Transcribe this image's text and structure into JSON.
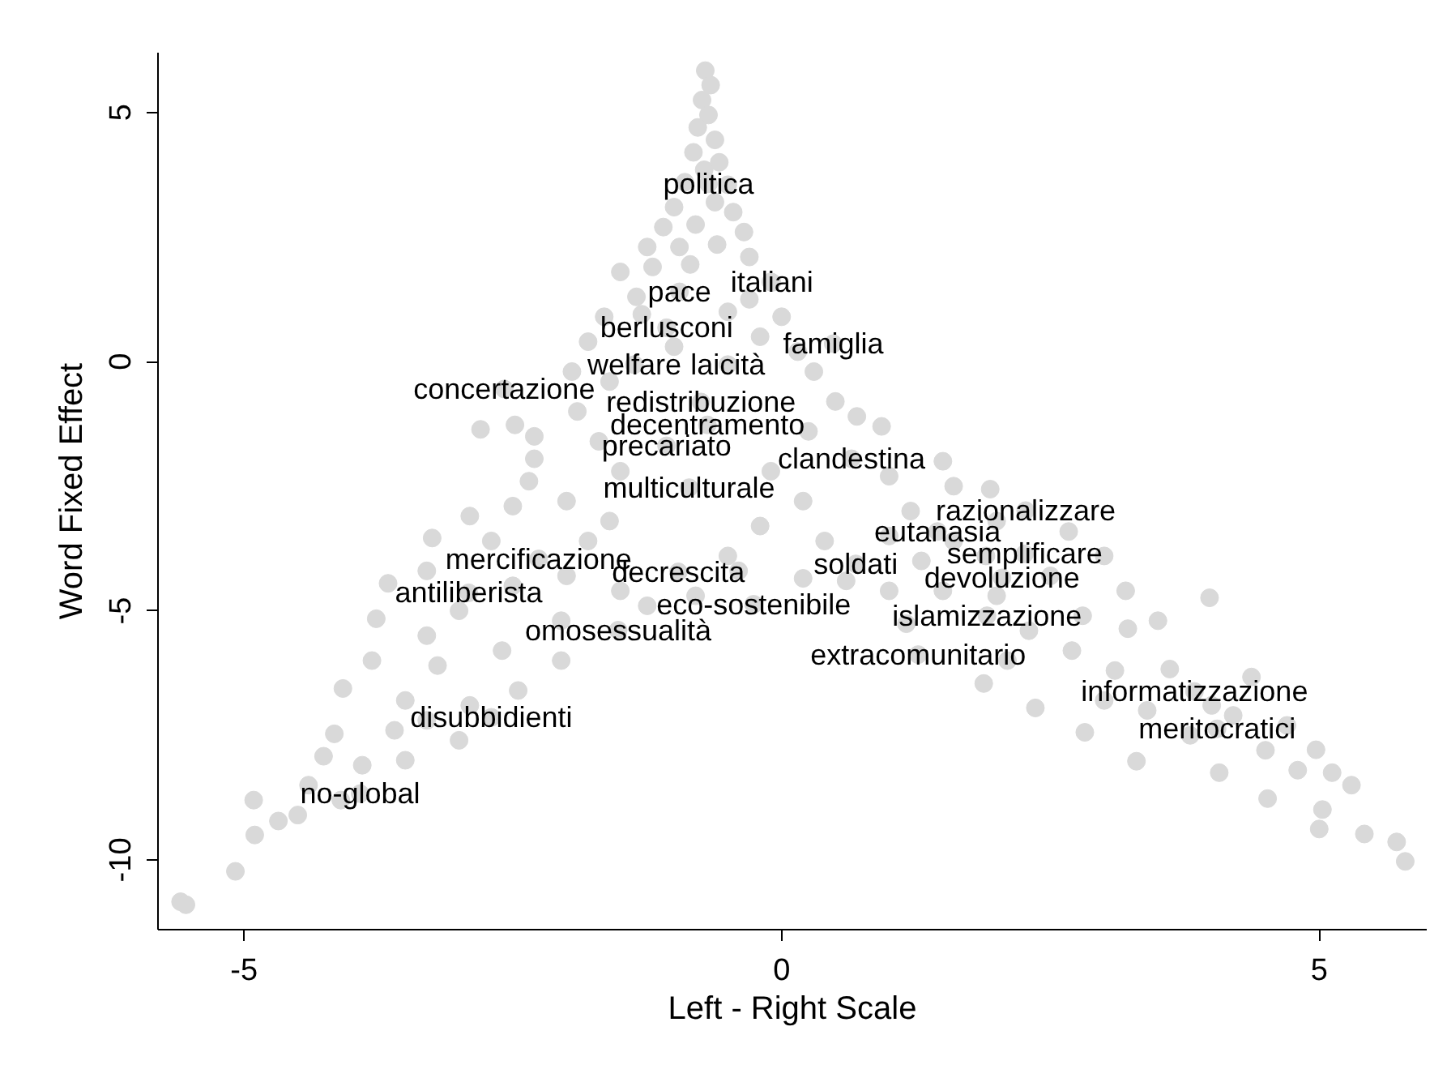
{
  "chart_data": {
    "type": "scatter",
    "xlabel": "Left - Right Scale",
    "ylabel": "Word Fixed Effect",
    "xlim": [
      -5.8,
      6.0
    ],
    "ylim": [
      -11.4,
      6.2
    ],
    "xticks": [
      -5,
      0,
      5
    ],
    "yticks": [
      -10,
      -5,
      0,
      5
    ],
    "grid": false,
    "marker": "circle",
    "x": [
      -0.71,
      -0.66,
      -0.74,
      -0.68,
      -0.78,
      -0.62,
      -0.82,
      -0.58,
      -0.72,
      -0.9,
      -0.5,
      -0.62,
      -1.0,
      -0.45,
      -1.1,
      -0.8,
      -0.35,
      -1.25,
      -0.95,
      -0.6,
      -0.3,
      -1.5,
      -1.2,
      -0.85,
      -0.1,
      -1.35,
      -0.3,
      -1.65,
      -1.3,
      -0.5,
      0.0,
      -1.8,
      -0.2,
      0.15,
      -1.95,
      -1.0,
      0.3,
      -1.6,
      0.5,
      -1.9,
      0.7,
      -2.3,
      0.25,
      -1.7,
      0.93,
      -2.8,
      -2.48,
      -2.3,
      -2.35,
      1.0,
      1.5,
      1.6,
      1.94,
      -0.1,
      -1.5,
      0.2,
      -2.9,
      -2.5,
      -2.0,
      -1.6,
      -0.2,
      0.4,
      1.2,
      2.0,
      2.67,
      -3.25,
      -2.7,
      -1.8,
      -0.5,
      1.0,
      1.6,
      3.0,
      2.5,
      -3.66,
      -3.3,
      -2.5,
      -2.0,
      -1.5,
      -0.4,
      0.2,
      1.0,
      1.5,
      2.0,
      3.2,
      3.98,
      3.5,
      2.8,
      1.16,
      -1.25,
      -2.05,
      -3.0,
      -3.77,
      -3.3,
      -2.6,
      -2.05,
      -3.81,
      -3.2,
      -2.45,
      -4.08,
      -3.5,
      -2.9,
      -4.16,
      -3.6,
      -3.0,
      -3.3,
      -4.26,
      -3.9,
      -3.5,
      -4.4,
      -4.1,
      -4.91,
      -4.68,
      -4.5,
      -4.9,
      -5.08,
      -5.59,
      -5.54,
      1.9,
      2.3,
      2.1,
      1.88,
      2.7,
      2.36,
      3.1,
      2.82,
      3.0,
      3.4,
      3.3,
      3.61,
      3.22,
      3.8,
      4.07,
      4.37,
      4.2,
      4.5,
      4.52,
      4.8,
      4.97,
      5.12,
      5.3,
      5.03,
      5.0,
      5.42,
      5.72,
      5.8,
      4.7,
      4.0,
      -0.8,
      0.6,
      1.3
    ],
    "series": [
      {
        "color": "#d9d9d9",
        "values": [
          5.84,
          5.55,
          5.25,
          4.95,
          4.7,
          4.45,
          4.2,
          4.0,
          3.85,
          3.6,
          3.55,
          3.2,
          3.1,
          3.0,
          2.7,
          2.75,
          2.6,
          2.3,
          2.3,
          2.35,
          2.1,
          1.8,
          1.9,
          1.95,
          1.6,
          1.3,
          1.25,
          0.9,
          0.95,
          1.0,
          0.9,
          0.4,
          0.5,
          0.2,
          -0.2,
          0.3,
          -0.2,
          -0.4,
          -0.8,
          -1.0,
          -1.1,
          -1.5,
          -1.4,
          -1.6,
          -1.3,
          -1.36,
          -1.27,
          -1.95,
          -2.4,
          -2.3,
          -2.0,
          -2.5,
          -2.56,
          -2.2,
          -2.2,
          -2.8,
          -3.1,
          -2.9,
          -2.8,
          -3.2,
          -3.3,
          -3.6,
          -3.0,
          -3.2,
          -3.41,
          -3.54,
          -3.6,
          -3.6,
          -3.9,
          -3.5,
          -3.6,
          -3.9,
          -4.3,
          -4.45,
          -4.2,
          -4.5,
          -4.3,
          -4.6,
          -4.2,
          -4.35,
          -4.6,
          -4.6,
          -4.7,
          -4.6,
          -4.74,
          -5.2,
          -5.1,
          -5.26,
          -4.9,
          -5.2,
          -5.0,
          -5.16,
          -5.5,
          -5.8,
          -6.0,
          -6.0,
          -6.1,
          -6.6,
          -6.56,
          -6.8,
          -6.9,
          -7.47,
          -7.4,
          -7.6,
          -7.2,
          -7.92,
          -8.1,
          -8.0,
          -8.5,
          -8.8,
          -8.8,
          -9.22,
          -9.1,
          -9.5,
          -10.23,
          -10.84,
          -10.9,
          -3.9,
          -5.4,
          -6.0,
          -6.46,
          -5.8,
          -6.95,
          -6.2,
          -7.44,
          -6.8,
          -7.0,
          -8.02,
          -6.17,
          -5.36,
          -7.5,
          -8.25,
          -6.33,
          -7.1,
          -7.8,
          -8.77,
          -8.2,
          -7.79,
          -8.25,
          -8.5,
          -8.99,
          -9.38,
          -9.48,
          -9.64,
          -10.03,
          -7.3,
          -6.9,
          -4.7,
          -4.4,
          -4.0
        ]
      },
      {
        "color": "#d9d9d9",
        "x": [
          -0.68,
          -0.95,
          -0.09,
          -1.07,
          0.48,
          -1.37,
          -0.5,
          -2.58,
          -0.75,
          -0.69,
          -1.07,
          0.65,
          -0.86,
          2.27,
          1.45,
          2.26,
          -2.26,
          0.69,
          -0.96,
          2.05,
          -2.91,
          -0.26,
          1.91,
          -1.52,
          1.27,
          3.84,
          -2.7,
          4.05,
          -3.92
        ],
        "values": [
          3.57,
          1.4,
          1.59,
          0.68,
          0.36,
          -0.06,
          -0.06,
          -0.55,
          -0.81,
          -1.27,
          -1.69,
          -1.95,
          -2.53,
          -2.99,
          -3.41,
          -3.86,
          -3.96,
          -4.06,
          -4.22,
          -4.34,
          -4.64,
          -4.87,
          -5.1,
          -5.39,
          -5.88,
          -6.62,
          -7.14,
          -7.37,
          -8.67
        ],
        "value_labels": [
          "politica",
          "pace",
          "italiani",
          "berlusconi",
          "famiglia",
          "welfare",
          "laicità",
          "concertazione",
          "redistribuzione",
          "decentramento",
          "precariato",
          "clandestina",
          "multiculturale",
          "razionalizzare",
          "eutanasia",
          "semplificare",
          "mercificazione",
          "soldati",
          "decrescita",
          "devoluzione",
          "antiliberista",
          "eco-sostenibile",
          "islamizzazione",
          "omosessualità",
          "extracomunitario",
          "informatizzazione",
          "disubbidienti",
          "meritocratici",
          "no-global"
        ]
      }
    ]
  }
}
